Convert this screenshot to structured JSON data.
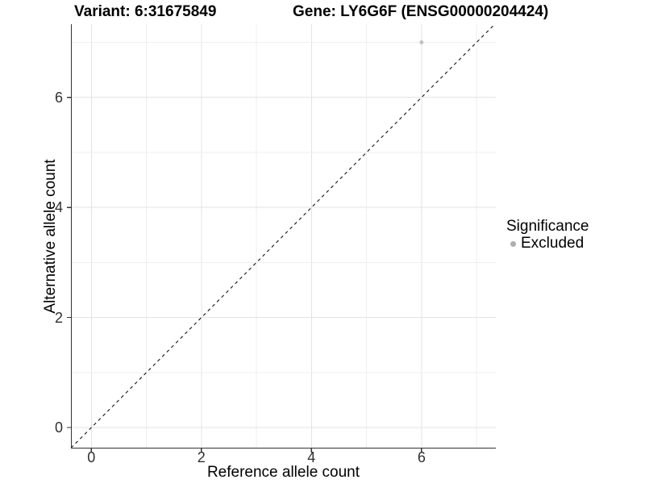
{
  "header": {
    "title_left": "Variant: 6:31675849",
    "title_right": "Gene: LY6G6F (ENSG00000204424)"
  },
  "chart_data": {
    "type": "scatter",
    "titles": [
      "Variant: 6:31675849",
      "Gene: LY6G6F (ENSG00000204424)"
    ],
    "xlabel": "Reference allele count",
    "ylabel": "Alternative allele count",
    "xlim": [
      -0.37,
      7.35
    ],
    "ylim": [
      -0.38,
      7.33
    ],
    "x_ticks": [
      0,
      2,
      4,
      6
    ],
    "y_ticks": [
      0,
      2,
      4,
      6
    ],
    "x_gridlines": [
      0,
      1,
      2,
      3,
      4,
      5,
      6,
      7
    ],
    "y_gridlines": [
      0,
      1,
      2,
      3,
      4,
      5,
      6,
      7
    ],
    "grid": "on",
    "series": [
      {
        "name": "Excluded",
        "color": "#c2c2c2",
        "points": [
          [
            6,
            7
          ]
        ]
      }
    ],
    "reference_line": {
      "equation": "y = x",
      "style": "dashed",
      "color": "#000000"
    },
    "legend": {
      "title": "Significance",
      "position": "right",
      "entries": [
        {
          "label": "Excluded",
          "marker": "circle",
          "color": "#aeaeae"
        }
      ]
    },
    "colors": {
      "grid_major": "#e3e3e3",
      "grid_minor": "#efefef",
      "axis_line": "#333333",
      "tick_label": "#303030",
      "panel_background": "#ffffff"
    }
  }
}
